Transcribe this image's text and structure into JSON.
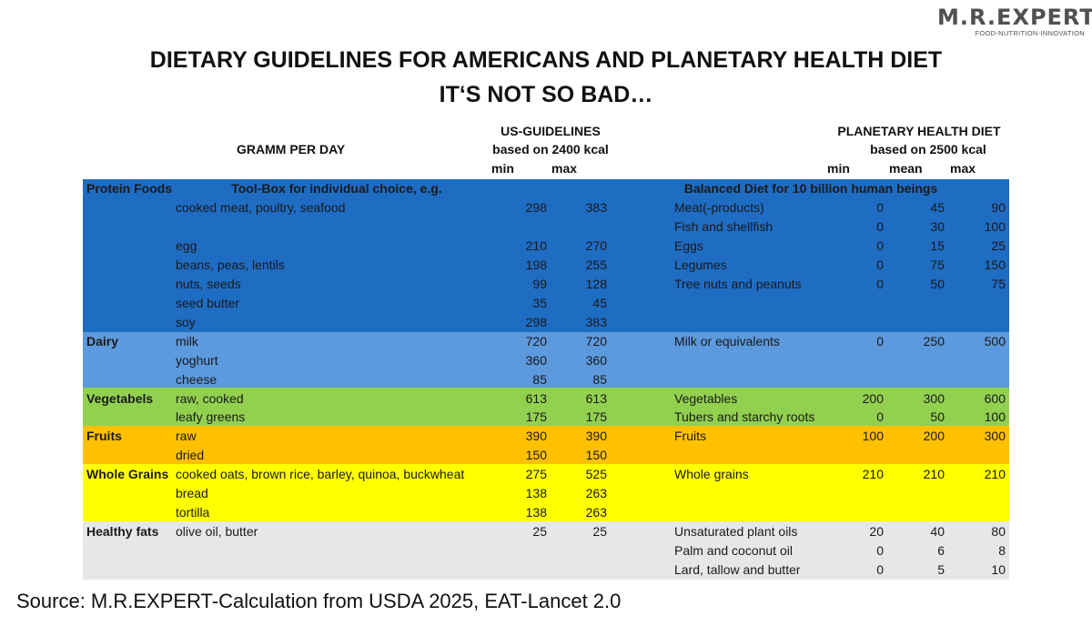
{
  "logo": {
    "name": "M.R.EXPERT",
    "tagline": "FOOD-NUTRITION-INNOVATION"
  },
  "title": {
    "line1": "DIETARY GUIDELINES FOR AMERICANS AND PLANETARY HEALTH DIET",
    "line2": "IT‘S NOT SO BAD…"
  },
  "header": {
    "gramm": "GRAMM PER DAY",
    "us_title": "US-GUIDELINES",
    "us_basis": "based on 2400 kcal",
    "us_min": "min",
    "us_max": "max",
    "phd_title": "PLANETARY HEALTH DIET",
    "phd_basis": "based on 2500 kcal",
    "phd_min": "min",
    "phd_mean": "mean",
    "phd_max": "max"
  },
  "colors": {
    "protein": "#1F6CC3",
    "dairy": "#5C99DD",
    "vegetables": "#92D050",
    "fruits": "#FFC000",
    "grains": "#FFFF00",
    "fats": "#E7E7E7"
  },
  "subheader": {
    "category": "Protein Foods",
    "us": "Tool-Box for individual choice, e.g.",
    "phd": "Balanced Diet for 10 billion human beings"
  },
  "rows": [
    {
      "category": "",
      "food": "cooked meat, poultry, seafood",
      "us_min": "298",
      "us_max": "383",
      "phd_food": "Meat(-products)",
      "phd_min": "0",
      "phd_mean": "45",
      "phd_max": "90"
    },
    {
      "category": "",
      "food": "",
      "us_min": "",
      "us_max": "",
      "phd_food": "Fish and shellfish",
      "phd_min": "0",
      "phd_mean": "30",
      "phd_max": "100"
    },
    {
      "category": "",
      "food": "egg",
      "us_min": "210",
      "us_max": "270",
      "phd_food": "Eggs",
      "phd_min": "0",
      "phd_mean": "15",
      "phd_max": "25"
    },
    {
      "category": "",
      "food": "beans, peas, lentils",
      "us_min": "198",
      "us_max": "255",
      "phd_food": "Legumes",
      "phd_min": "0",
      "phd_mean": "75",
      "phd_max": "150"
    },
    {
      "category": "",
      "food": "nuts, seeds",
      "us_min": "99",
      "us_max": "128",
      "phd_food": "Tree nuts and peanuts",
      "phd_min": "0",
      "phd_mean": "50",
      "phd_max": "75"
    },
    {
      "category": "",
      "food": "seed butter",
      "us_min": "35",
      "us_max": "45",
      "phd_food": "",
      "phd_min": "",
      "phd_mean": "",
      "phd_max": ""
    },
    {
      "category": "",
      "food": "soy",
      "us_min": "298",
      "us_max": "383",
      "phd_food": "",
      "phd_min": "",
      "phd_mean": "",
      "phd_max": ""
    },
    {
      "category": "Dairy",
      "food": "milk",
      "us_min": "720",
      "us_max": "720",
      "phd_food": "Milk or equivalents",
      "phd_min": "0",
      "phd_mean": "250",
      "phd_max": "500"
    },
    {
      "category": "",
      "food": "yoghurt",
      "us_min": "360",
      "us_max": "360",
      "phd_food": "",
      "phd_min": "",
      "phd_mean": "",
      "phd_max": ""
    },
    {
      "category": "",
      "food": "cheese",
      "us_min": "85",
      "us_max": "85",
      "phd_food": "",
      "phd_min": "",
      "phd_mean": "",
      "phd_max": ""
    },
    {
      "category": "Vegetabels",
      "food": "raw, cooked",
      "us_min": "613",
      "us_max": "613",
      "phd_food": "Vegetables",
      "phd_min": "200",
      "phd_mean": "300",
      "phd_max": "600"
    },
    {
      "category": "",
      "food": "leafy greens",
      "us_min": "175",
      "us_max": "175",
      "phd_food": "Tubers and starchy roots",
      "phd_min": "0",
      "phd_mean": "50",
      "phd_max": "100"
    },
    {
      "category": "Fruits",
      "food": "raw",
      "us_min": "390",
      "us_max": "390",
      "phd_food": "Fruits",
      "phd_min": "100",
      "phd_mean": "200",
      "phd_max": "300"
    },
    {
      "category": "",
      "food": "dried",
      "us_min": "150",
      "us_max": "150",
      "phd_food": "",
      "phd_min": "",
      "phd_mean": "",
      "phd_max": ""
    },
    {
      "category": "Whole Grains",
      "food": "cooked oats, brown rice, barley, quinoa, buckwheat",
      "us_min": "275",
      "us_max": "525",
      "phd_food": "Whole grains",
      "phd_min": "210",
      "phd_mean": "210",
      "phd_max": "210"
    },
    {
      "category": "",
      "food": "bread",
      "us_min": "138",
      "us_max": "263",
      "phd_food": "",
      "phd_min": "",
      "phd_mean": "",
      "phd_max": ""
    },
    {
      "category": "",
      "food": "tortilla",
      "us_min": "138",
      "us_max": "263",
      "phd_food": "",
      "phd_min": "",
      "phd_mean": "",
      "phd_max": ""
    },
    {
      "category": "Healthy fats",
      "food": "olive oil, butter",
      "us_min": "25",
      "us_max": "25",
      "phd_food": "Unsaturated plant oils",
      "phd_min": "20",
      "phd_mean": "40",
      "phd_max": "80"
    },
    {
      "category": "",
      "food": "",
      "us_min": "",
      "us_max": "",
      "phd_food": "Palm and coconut oil",
      "phd_min": "0",
      "phd_mean": "6",
      "phd_max": "8"
    },
    {
      "category": "",
      "food": "",
      "us_min": "",
      "us_max": "",
      "phd_food": "Lard, tallow and butter",
      "phd_min": "0",
      "phd_mean": "5",
      "phd_max": "10"
    }
  ],
  "source": "Source: M.R.EXPERT-Calculation from USDA 2025, EAT-Lancet 2.0"
}
